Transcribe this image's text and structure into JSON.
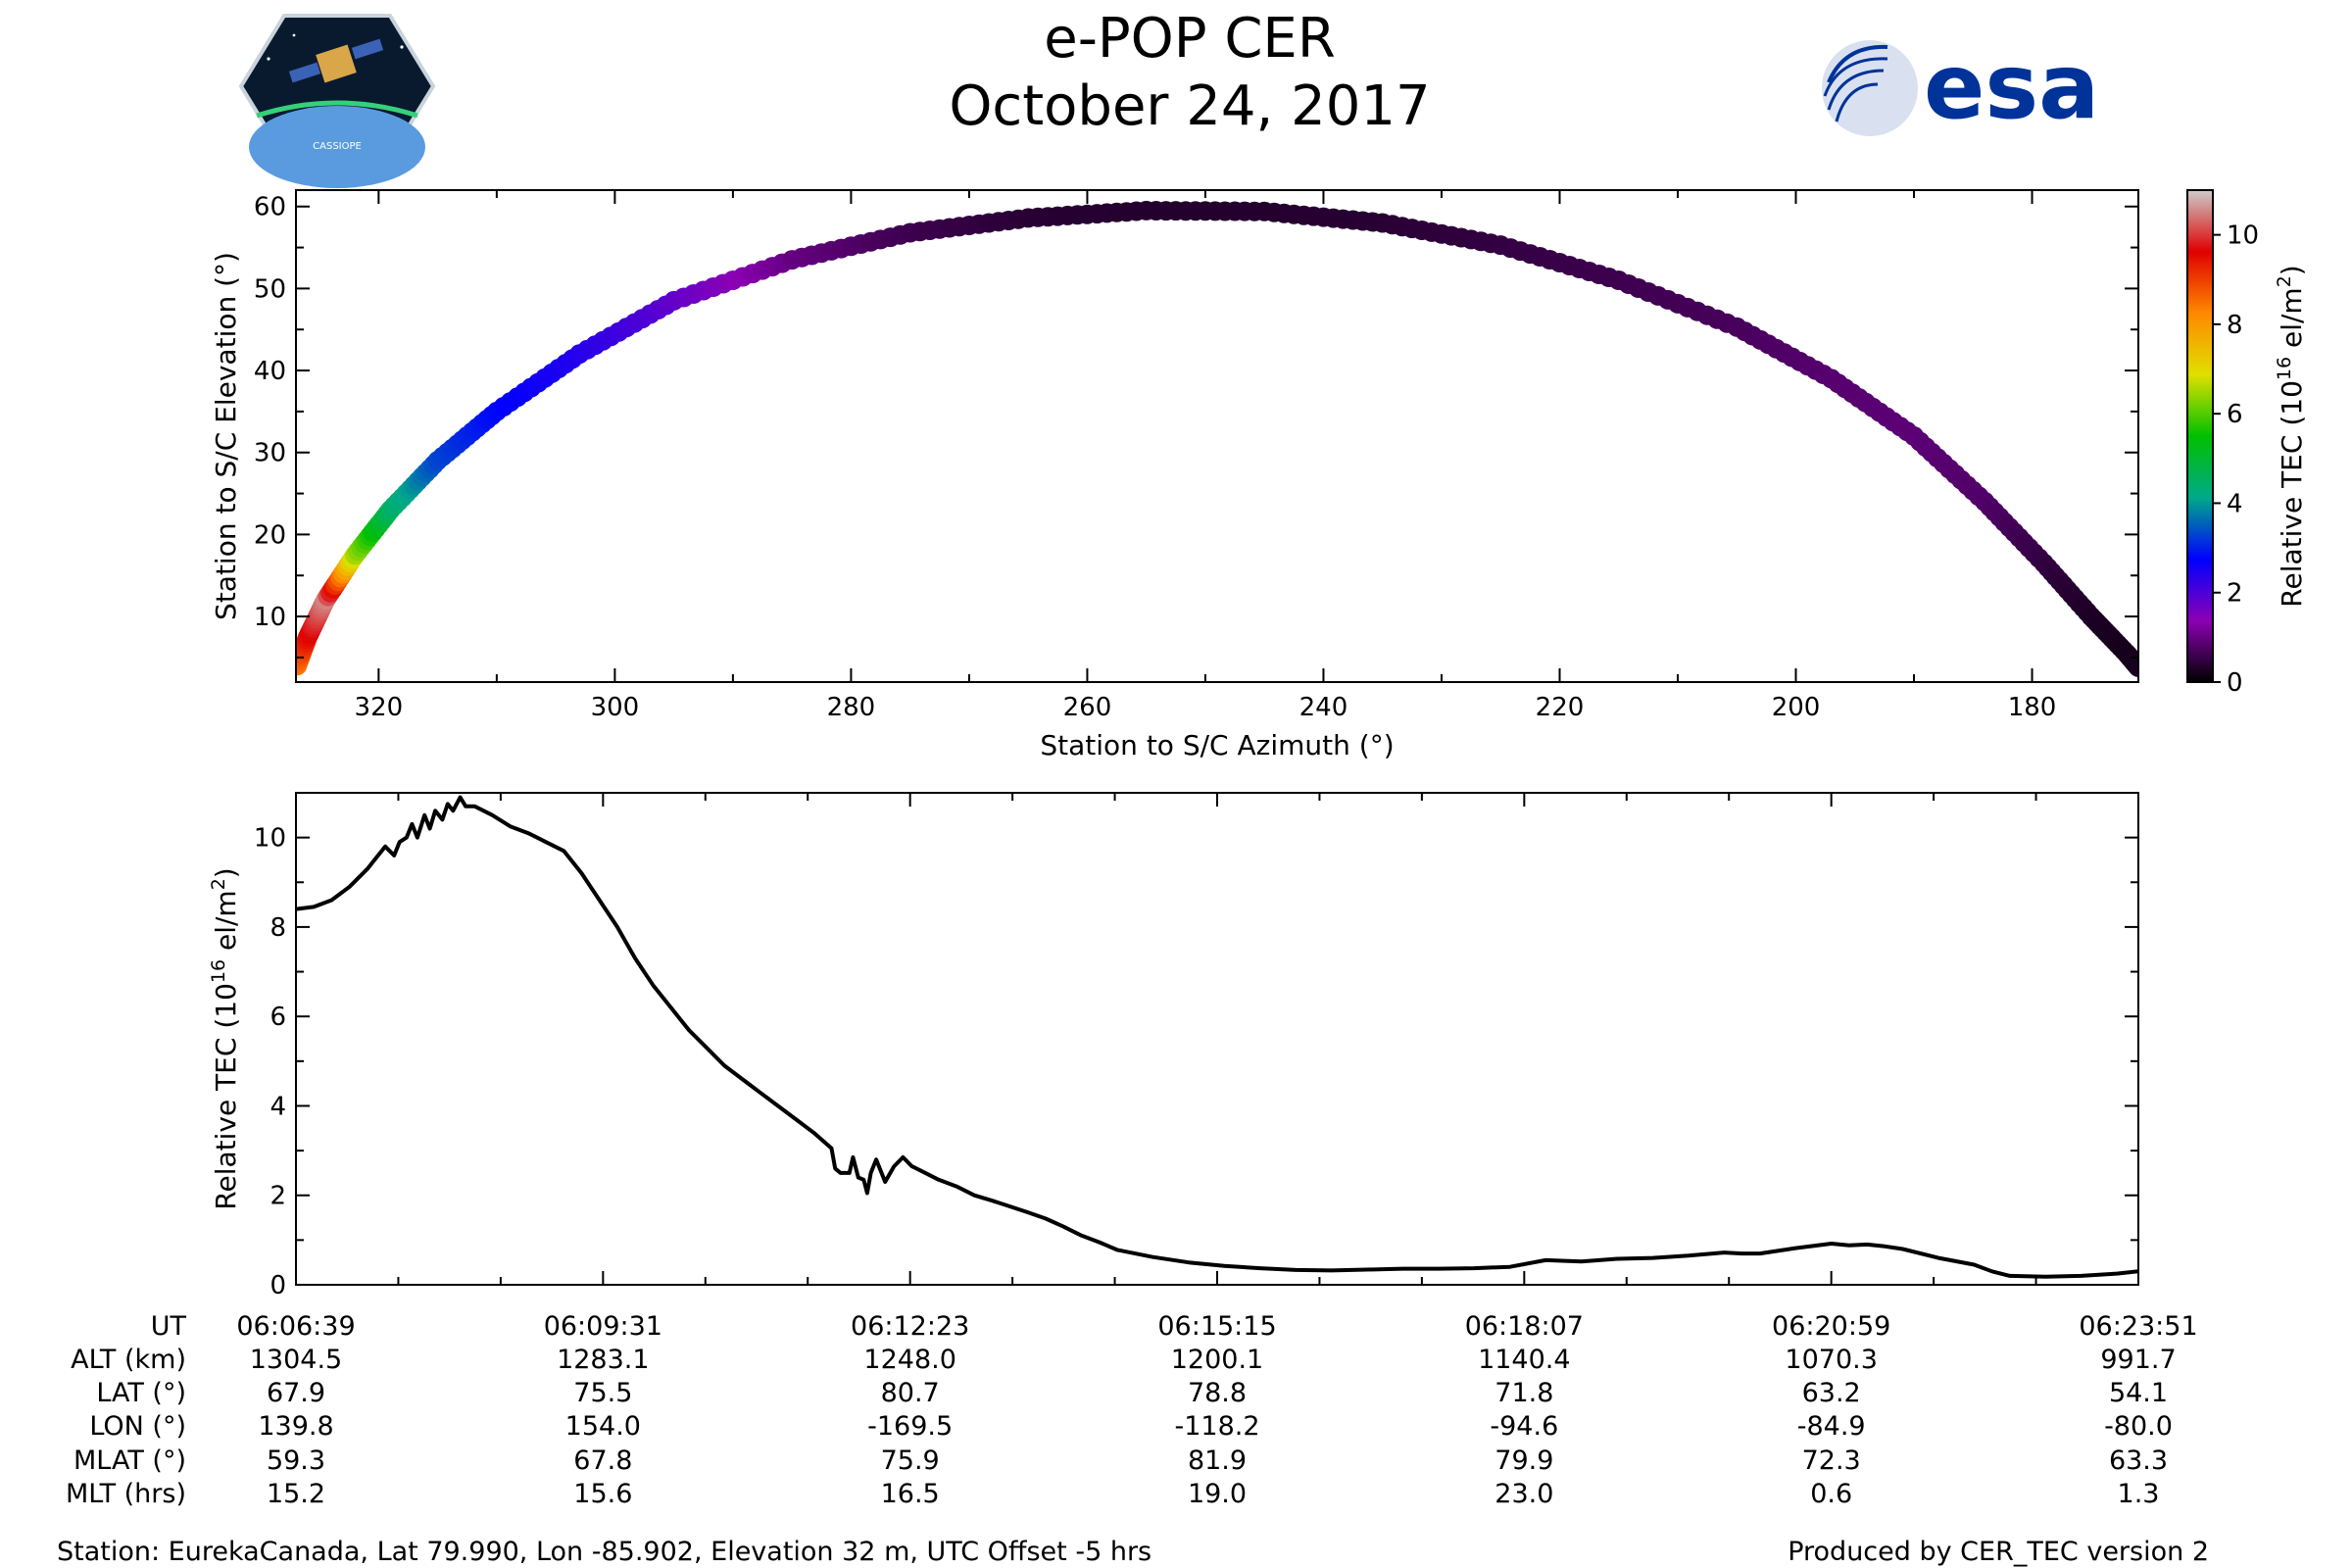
{
  "header": {
    "title": "e-POP CER",
    "date": "October 24, 2017",
    "left_logo": {
      "icon": "cassiope-mission-logo",
      "caption": "CASSIOPE"
    },
    "right_logo": {
      "icon": "esa-logo",
      "wordmark": "esa",
      "color": "#003399"
    }
  },
  "chart_data": [
    {
      "type": "scatter",
      "subtype": "colored-track",
      "xlabel": "Station to S/C Azimuth (°)",
      "ylabel": "Station to S/C Elevation (°)",
      "xlim": [
        327,
        171
      ],
      "ylim": [
        2,
        62
      ],
      "x_ticks": [
        320,
        300,
        280,
        260,
        240,
        220,
        200,
        180
      ],
      "y_ticks": [
        10,
        20,
        30,
        40,
        50,
        60
      ],
      "colorbar": {
        "label": "Relative TEC (10^16 el/m^2)",
        "range": [
          0,
          11
        ],
        "ticks": [
          0,
          2,
          4,
          6,
          8,
          10
        ],
        "colormap": "nipy_spectral",
        "colors": [
          "#000000",
          "#8c00b4",
          "#0000ff",
          "#00aa88",
          "#00c000",
          "#e0e000",
          "#ff8800",
          "#e00000",
          "#cccccc"
        ]
      },
      "series": [
        {
          "points": [
            {
              "az": 326.9,
              "el": 4.0,
              "tec": 8.4
            },
            {
              "az": 326.0,
              "el": 7.5,
              "tec": 9.5
            },
            {
              "az": 324.5,
              "el": 12.0,
              "tec": 10.5
            },
            {
              "az": 322.0,
              "el": 17.5,
              "tec": 6.5
            },
            {
              "az": 319.0,
              "el": 23.0,
              "tec": 4.5
            },
            {
              "az": 315.0,
              "el": 29.0,
              "tec": 3.3
            },
            {
              "az": 310.0,
              "el": 35.0,
              "tec": 2.8
            },
            {
              "az": 303.0,
              "el": 42.0,
              "tec": 2.4
            },
            {
              "az": 295.0,
              "el": 48.5,
              "tec": 1.8
            },
            {
              "az": 285.0,
              "el": 53.5,
              "tec": 1.0
            },
            {
              "az": 275.0,
              "el": 56.8,
              "tec": 0.6
            },
            {
              "az": 265.0,
              "el": 58.6,
              "tec": 0.4
            },
            {
              "az": 255.0,
              "el": 59.5,
              "tec": 0.35
            },
            {
              "az": 245.0,
              "el": 59.4,
              "tec": 0.35
            },
            {
              "az": 235.0,
              "el": 58.0,
              "tec": 0.4
            },
            {
              "az": 225.0,
              "el": 55.3,
              "tec": 0.5
            },
            {
              "az": 215.0,
              "el": 51.0,
              "tec": 0.6
            },
            {
              "az": 205.0,
              "el": 45.3,
              "tec": 0.7
            },
            {
              "az": 197.0,
              "el": 39.0,
              "tec": 0.85
            },
            {
              "az": 190.0,
              "el": 32.0,
              "tec": 0.9
            },
            {
              "az": 184.0,
              "el": 24.0,
              "tec": 0.8
            },
            {
              "az": 179.0,
              "el": 16.5,
              "tec": 0.5
            },
            {
              "az": 175.0,
              "el": 10.0,
              "tec": 0.3
            },
            {
              "az": 172.0,
              "el": 5.5,
              "tec": 0.2
            },
            {
              "az": 171.0,
              "el": 3.8,
              "tec": 0.25
            }
          ]
        }
      ]
    },
    {
      "type": "line",
      "ylabel": "Relative TEC (10^16 el/m^2)",
      "xlim": [
        0,
        1032
      ],
      "ylim": [
        0,
        11
      ],
      "y_ticks": [
        0,
        2,
        4,
        6,
        8,
        10
      ],
      "x_tick_seconds": [
        0,
        172,
        344,
        516,
        688,
        860,
        1032
      ],
      "series": [
        {
          "x": [
            0,
            10,
            20,
            30,
            40,
            50,
            55,
            58,
            62,
            65,
            68,
            72,
            75,
            78,
            82,
            85,
            88,
            92,
            95,
            100,
            110,
            120,
            130,
            135,
            140,
            150,
            160,
            170,
            180,
            190,
            200,
            210,
            220,
            230,
            240,
            250,
            260,
            270,
            280,
            290,
            300,
            302,
            305,
            310,
            312,
            315,
            318,
            320,
            322,
            325,
            330,
            335,
            340,
            345,
            350,
            360,
            370,
            380,
            390,
            400,
            410,
            420,
            430,
            440,
            450,
            460,
            480,
            500,
            520,
            540,
            560,
            580,
            600,
            620,
            640,
            660,
            680,
            700,
            720,
            740,
            760,
            780,
            800,
            810,
            820,
            840,
            860,
            870,
            880,
            890,
            900,
            920,
            940,
            950,
            960,
            980,
            1000,
            1020,
            1032
          ],
          "y": [
            8.4,
            8.45,
            8.6,
            8.9,
            9.3,
            9.8,
            9.6,
            9.9,
            10.0,
            10.3,
            10.0,
            10.5,
            10.2,
            10.6,
            10.4,
            10.75,
            10.6,
            10.9,
            10.7,
            10.7,
            10.5,
            10.25,
            10.1,
            10.0,
            9.9,
            9.7,
            9.2,
            8.6,
            8.0,
            7.3,
            6.7,
            6.2,
            5.7,
            5.3,
            4.9,
            4.6,
            4.3,
            4.0,
            3.7,
            3.4,
            3.05,
            2.6,
            2.5,
            2.5,
            2.85,
            2.4,
            2.35,
            2.05,
            2.5,
            2.8,
            2.3,
            2.65,
            2.85,
            2.65,
            2.55,
            2.35,
            2.2,
            2.0,
            1.88,
            1.75,
            1.62,
            1.48,
            1.3,
            1.1,
            0.95,
            0.78,
            0.62,
            0.5,
            0.42,
            0.37,
            0.33,
            0.32,
            0.34,
            0.36,
            0.36,
            0.37,
            0.4,
            0.55,
            0.52,
            0.58,
            0.6,
            0.65,
            0.72,
            0.7,
            0.7,
            0.82,
            0.92,
            0.88,
            0.9,
            0.86,
            0.8,
            0.6,
            0.45,
            0.3,
            0.2,
            0.18,
            0.2,
            0.25,
            0.3
          ]
        }
      ]
    }
  ],
  "info_table": {
    "row_labels": [
      "UT",
      "ALT (km)",
      "LAT (°)",
      "LON (°)",
      "MLAT (°)",
      "MLT (hrs)"
    ],
    "columns": [
      [
        "06:06:39",
        "1304.5",
        "67.9",
        "139.8",
        "59.3",
        "15.2"
      ],
      [
        "06:09:31",
        "1283.1",
        "75.5",
        "154.0",
        "67.8",
        "15.6"
      ],
      [
        "06:12:23",
        "1248.0",
        "80.7",
        "-169.5",
        "75.9",
        "16.5"
      ],
      [
        "06:15:15",
        "1200.1",
        "78.8",
        "-118.2",
        "81.9",
        "19.0"
      ],
      [
        "06:18:07",
        "1140.4",
        "71.8",
        "-94.6",
        "79.9",
        "23.0"
      ],
      [
        "06:20:59",
        "1070.3",
        "63.2",
        "-84.9",
        "72.3",
        "0.6"
      ],
      [
        "06:23:51",
        "991.7",
        "54.1",
        "-80.0",
        "63.3",
        "1.3"
      ]
    ]
  },
  "footer": {
    "station": "Station: EurekaCanada, Lat 79.990, Lon -85.902, Elevation 32 m, UTC Offset -5 hrs",
    "produced_by": "Produced by CER_TEC version 2"
  }
}
